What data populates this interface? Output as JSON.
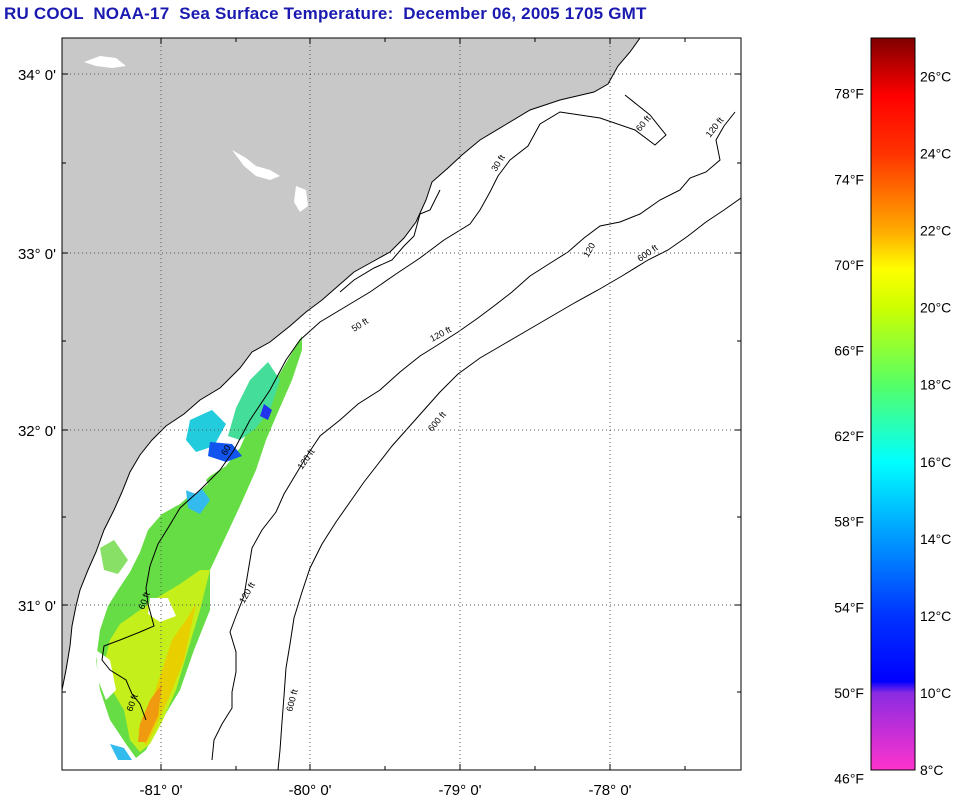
{
  "title": "RU COOL  NOAA-17  Sea Surface Temperature:  December 06, 2005 1705 GMT",
  "map": {
    "lat_labels": [
      "34° 0'",
      "33° 0'",
      "32° 0'",
      "31° 0'"
    ],
    "lon_labels": [
      "-81° 0'",
      "-80° 0'",
      "-79° 0'",
      "-78° 0'"
    ],
    "contours": [
      {
        "label": "60 ft"
      },
      {
        "label": "120 ft"
      },
      {
        "label": "600 ft"
      }
    ],
    "contour_labels": [
      "30 ft",
      "60 ft",
      "120 ft",
      "600 ft",
      "50 ft",
      "120 ft",
      "600 ft",
      "120 ft",
      "60",
      "60 ft",
      "120",
      "600 ft",
      "60 ft",
      "120 ft"
    ],
    "colors": {
      "land": "#c8c8c8",
      "ocean": "#ffffff",
      "grid": "#555555"
    }
  },
  "colorbar": {
    "fahrenheit": [
      "78°F",
      "74°F",
      "70°F",
      "66°F",
      "62°F",
      "58°F",
      "54°F",
      "50°F",
      "46°F"
    ],
    "celsius": [
      "26°C",
      "24°C",
      "22°C",
      "20°C",
      "18°C",
      "16°C",
      "14°C",
      "12°C",
      "10°C",
      "8°C"
    ],
    "range_celsius": [
      8,
      27
    ],
    "gradient_stops": [
      {
        "c": 8,
        "color": "#ff33cc"
      },
      {
        "c": 10,
        "color": "#8a2be2"
      },
      {
        "c": 10.3,
        "color": "#0000ff"
      },
      {
        "c": 12,
        "color": "#0033ff"
      },
      {
        "c": 14,
        "color": "#0099ff"
      },
      {
        "c": 16,
        "color": "#00ffff"
      },
      {
        "c": 18,
        "color": "#55ff66"
      },
      {
        "c": 20,
        "color": "#ccff00"
      },
      {
        "c": 21,
        "color": "#ffff00"
      },
      {
        "c": 22,
        "color": "#ffaa00"
      },
      {
        "c": 24,
        "color": "#ff3300"
      },
      {
        "c": 25.5,
        "color": "#ff0000"
      },
      {
        "c": 27,
        "color": "#800000"
      }
    ]
  }
}
